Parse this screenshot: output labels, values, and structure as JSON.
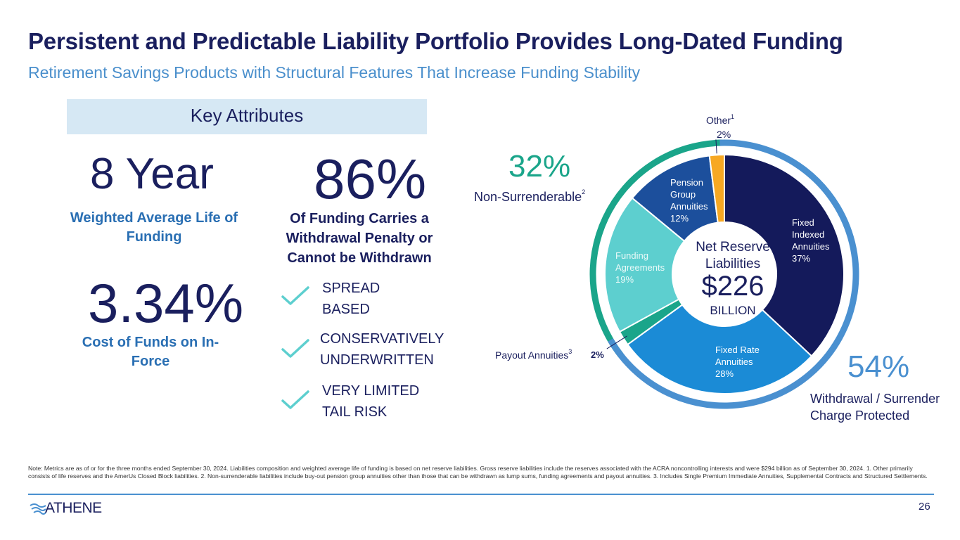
{
  "header": {
    "title": "Persistent and Predictable Liability Portfolio Provides Long-Dated Funding",
    "subtitle": "Retirement Savings Products with Structural Features That Increase Funding Stability"
  },
  "key_attributes": {
    "heading": "Key Attributes",
    "metrics": [
      {
        "value": "8 Year",
        "label": "Weighted Average Life of Funding"
      },
      {
        "value": "86%",
        "label": "Of Funding Carries a Withdrawal Penalty or Cannot be Withdrawn"
      },
      {
        "value": "3.34%",
        "label": "Cost of Funds on In-Force"
      }
    ],
    "features": [
      {
        "line1": "SPREAD",
        "line2": "BASED"
      },
      {
        "line1": "CONSERVATIVELY",
        "line2": "UNDERWRITTEN"
      },
      {
        "line1": "VERY LIMITED",
        "line2": "TAIL RISK"
      }
    ]
  },
  "chart_data": {
    "type": "pie",
    "style": "donut",
    "center": {
      "line1": "Net Reserve",
      "line2": "Liabilities",
      "amount": "$226",
      "unit": "BILLION"
    },
    "slices": [
      {
        "name": "Fixed Indexed Annuities",
        "label_lines": [
          "Fixed",
          "Indexed",
          "Annuities"
        ],
        "value": 37,
        "display": "37%",
        "color": "#141a5b"
      },
      {
        "name": "Fixed Rate Annuities",
        "label_lines": [
          "Fixed Rate",
          "Annuities"
        ],
        "value": 28,
        "display": "28%",
        "color": "#1b8bd6"
      },
      {
        "name": "Payout Annuities",
        "label_lines": [],
        "value": 2,
        "display": "2%",
        "color": "#1aa58a"
      },
      {
        "name": "Funding Agreements",
        "label_lines": [
          "Funding",
          "Agreements"
        ],
        "value": 19,
        "display": "19%",
        "color": "#5dcfcf"
      },
      {
        "name": "Pension Group Annuities",
        "label_lines": [
          "Pension",
          "Group",
          "Annuities"
        ],
        "value": 12,
        "display": "12%",
        "color": "#1c4f9c"
      },
      {
        "name": "Other",
        "label_lines": [],
        "value": 2,
        "display": "2%",
        "color": "#f7a823"
      }
    ],
    "external_labels": {
      "other": {
        "text": "Other",
        "sup": "1",
        "pct": "2%"
      },
      "payout": {
        "text": "Payout Annuities",
        "sup": "3",
        "pct": "2%"
      }
    },
    "groups": [
      {
        "name": "Non-Surrenderable",
        "sup": "2",
        "value": 32,
        "display": "32%",
        "color": "#1aa58a",
        "covers": [
          "Payout Annuities",
          "Funding Agreements",
          "Pension Group Annuities"
        ]
      },
      {
        "name": "Withdrawal / Surrender Charge Protected",
        "value": 54,
        "display": "54%",
        "color": "#4a90d0",
        "covers": [
          "Fixed Indexed Annuities",
          "Fixed Rate Annuities"
        ]
      }
    ]
  },
  "footer": {
    "note": "Note: Metrics are as of or for the three months ended September 30, 2024. Liabilities composition and weighted average life of funding is based on net reserve liabilities. Gross reserve liabilities include the reserves associated with the ACRA noncontrolling interests and were $294 billion as of September 30, 2024. 1. Other primarily consists of life reserves and the AmerUs Closed Block liabilities. 2. Non-surrenderable liabilities include buy-out pension group annuities other than those that can be withdrawn as lump sums, funding agreements and payout annuities. 3. Includes Single Premium Immediate Annuities, Supplemental Contracts and Structured Settlements.",
    "logo_text": "ATHENE",
    "page_number": "26"
  },
  "colors": {
    "navy": "#1a1f5e",
    "accent_blue": "#4a8fcc",
    "teal": "#1aa58a",
    "check": "#5dcfcf"
  }
}
